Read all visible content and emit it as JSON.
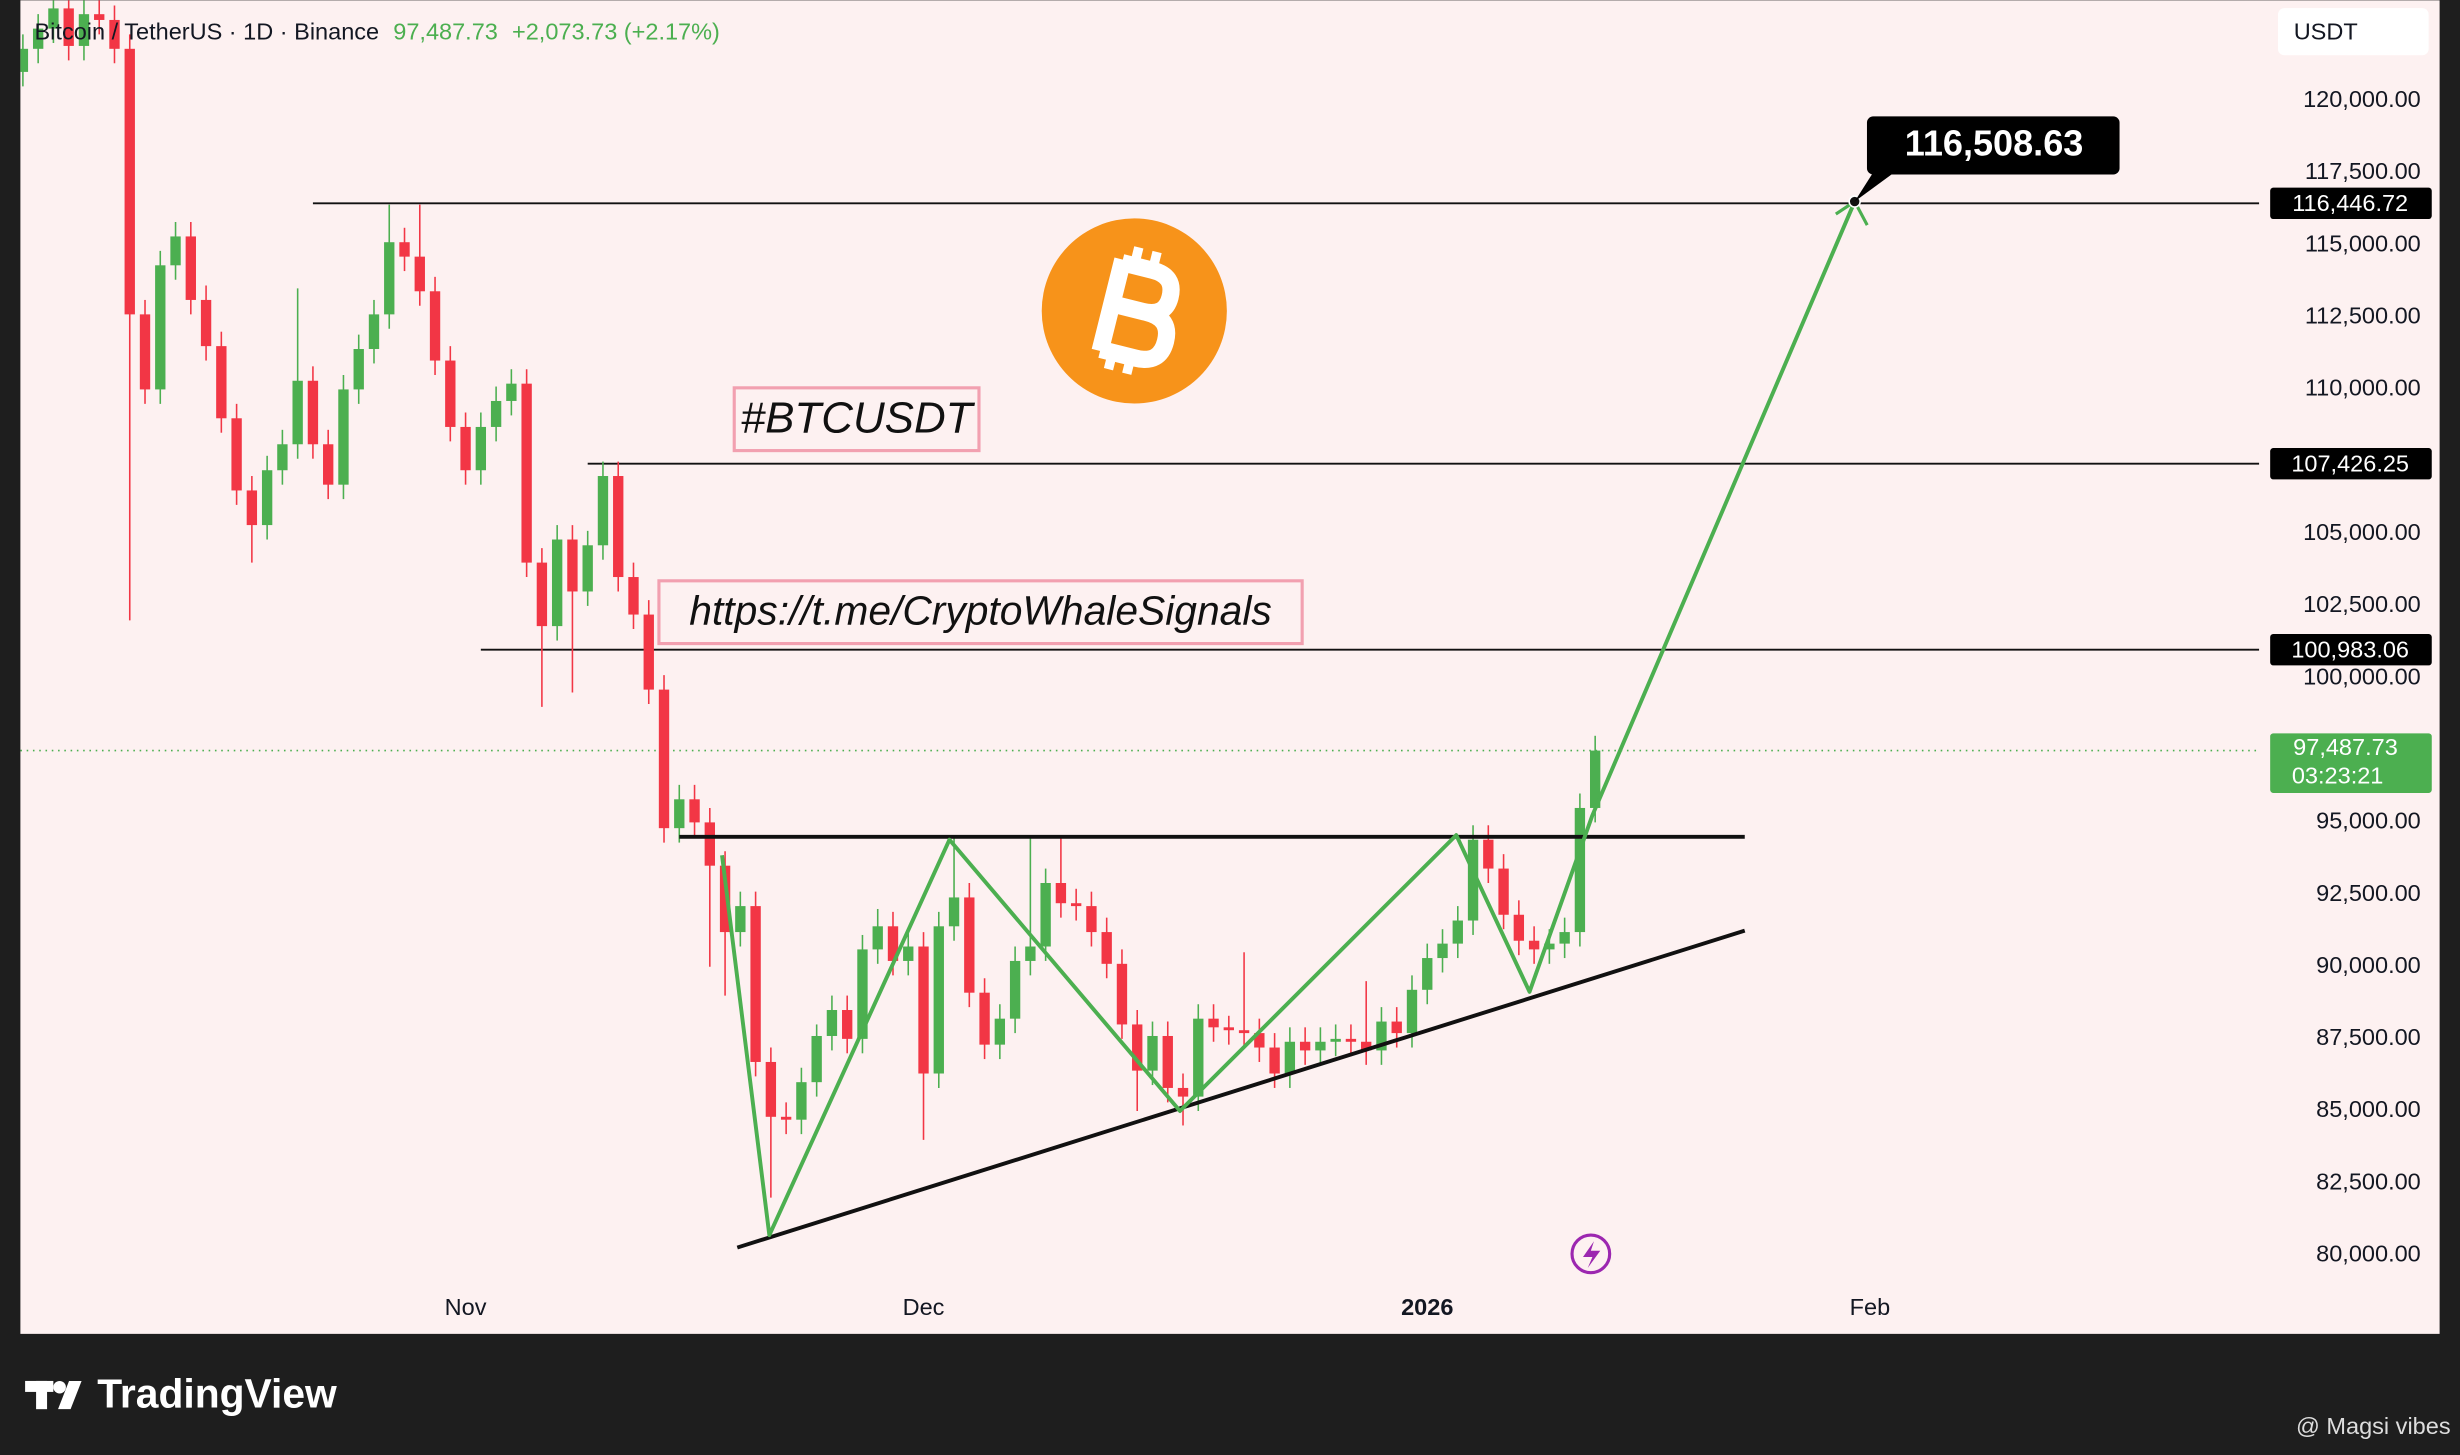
{
  "chart_data": {
    "type": "candlestick",
    "title": "Bitcoin / TetherUS · 1D · Binance",
    "price": {
      "value": 97487.73,
      "label": "97,487.73"
    },
    "change": "+2,073.73 (+2.17%)",
    "currency": "USDT",
    "countdown": "03:23:21",
    "up_color": "#4caf50",
    "down_color": "#f23645",
    "open": [
      121000,
      121800,
      122500,
      123200,
      121900,
      123000,
      122800,
      121800,
      112600,
      110000,
      114300,
      115300,
      113100,
      111500,
      109000,
      106500,
      105300,
      107200,
      108100,
      110300,
      108100,
      106700,
      110000,
      111400,
      112600,
      115100,
      114600,
      113400,
      111000,
      108700,
      107200,
      108700,
      109600,
      110200,
      104000,
      101800,
      104800,
      103000,
      104600,
      107000,
      103500,
      102200,
      99600,
      94800,
      95800,
      95000,
      93500,
      91200,
      92100,
      86700,
      84800,
      84700,
      86000,
      87600,
      88500,
      87500,
      90600,
      91400,
      90200,
      90700,
      86300,
      91400,
      92400,
      89100,
      87300,
      88200,
      90200,
      90700,
      92900,
      92200,
      92100,
      91200,
      90100,
      88000,
      86400,
      87600,
      85800,
      85500,
      88200,
      87900,
      87800,
      87700,
      87200,
      86300,
      87400,
      87100,
      87400,
      87500,
      87400,
      87100,
      88100,
      87700,
      89200,
      90300,
      90800,
      91600,
      94400,
      93400,
      91800,
      90900,
      90600,
      90800,
      91200,
      95500
    ],
    "high": [
      122300,
      123000,
      123700,
      123700,
      123500,
      123500,
      123300,
      122300,
      113100,
      114800,
      115800,
      115800,
      113600,
      112000,
      109500,
      107000,
      107700,
      108600,
      113500,
      110800,
      108600,
      110500,
      111900,
      113100,
      116400,
      115600,
      116400,
      113900,
      111500,
      109200,
      109200,
      110100,
      110700,
      110700,
      104500,
      105300,
      105300,
      105100,
      107500,
      107500,
      104000,
      102700,
      100100,
      96300,
      96300,
      95500,
      94000,
      92600,
      92600,
      87200,
      85300,
      86500,
      88000,
      89000,
      89000,
      91100,
      92000,
      91900,
      91200,
      91200,
      91900,
      94500,
      92900,
      89600,
      88700,
      90700,
      94500,
      93400,
      94500,
      92700,
      92600,
      91700,
      90600,
      88500,
      88100,
      88100,
      86300,
      88700,
      88700,
      88300,
      90500,
      88200,
      87700,
      87900,
      87900,
      87900,
      88000,
      88000,
      89500,
      88600,
      88600,
      89700,
      90800,
      91300,
      92100,
      94900,
      94900,
      93900,
      92300,
      91400,
      91300,
      91700,
      96000,
      98000
    ],
    "low": [
      120500,
      121300,
      122000,
      121400,
      121400,
      122300,
      121300,
      102000,
      109500,
      109500,
      113800,
      112600,
      111000,
      108500,
      106000,
      104000,
      104800,
      106700,
      107600,
      107600,
      106200,
      106200,
      109500,
      110900,
      112100,
      114100,
      112900,
      110500,
      108200,
      106700,
      106700,
      108200,
      109100,
      103500,
      99000,
      101300,
      99500,
      102500,
      104100,
      103000,
      101700,
      99100,
      94300,
      94300,
      94500,
      90000,
      89000,
      90700,
      86200,
      82000,
      84200,
      84200,
      85500,
      87100,
      87000,
      87000,
      90100,
      89700,
      89700,
      84000,
      85800,
      90900,
      88600,
      86800,
      86800,
      87700,
      89700,
      90200,
      91700,
      91600,
      90700,
      89600,
      87500,
      85000,
      85900,
      85300,
      84500,
      85000,
      87400,
      87300,
      87200,
      86700,
      85800,
      85800,
      86600,
      86600,
      86900,
      86900,
      86600,
      86600,
      87200,
      87200,
      88700,
      89800,
      90300,
      91100,
      92900,
      91300,
      90400,
      90100,
      90100,
      90300,
      90700,
      95000
    ],
    "close": [
      121800,
      122500,
      123200,
      121900,
      123000,
      122800,
      121800,
      112600,
      110000,
      114300,
      115300,
      113100,
      111500,
      109000,
      106500,
      105300,
      107200,
      108100,
      110300,
      108100,
      106700,
      110000,
      111400,
      112600,
      115100,
      114600,
      113400,
      111000,
      108700,
      107200,
      108700,
      109600,
      110200,
      104000,
      101800,
      104800,
      103000,
      104600,
      107000,
      103500,
      102200,
      99600,
      94800,
      95800,
      95000,
      93500,
      91200,
      92100,
      86700,
      84800,
      84700,
      86000,
      87600,
      88500,
      87500,
      90600,
      91400,
      90200,
      90700,
      86300,
      91400,
      92400,
      89100,
      87300,
      88200,
      90200,
      90700,
      92900,
      92200,
      92100,
      91200,
      90100,
      88000,
      86400,
      87600,
      85800,
      85500,
      88200,
      87900,
      87800,
      87700,
      87200,
      86300,
      87400,
      87100,
      87400,
      87500,
      87400,
      87100,
      88100,
      87700,
      89200,
      90300,
      90800,
      91600,
      94400,
      93400,
      91800,
      90900,
      90600,
      90800,
      91200,
      95500,
      97487.73
    ],
    "xlim": [
      -1.5,
      146.5
    ],
    "xticks": [
      {
        "value": 29,
        "label": "Nov"
      },
      {
        "value": 59,
        "label": "Dec"
      },
      {
        "value": 92,
        "label": "2026"
      },
      {
        "value": 121,
        "label": "Feb"
      }
    ],
    "ylim": [
      77280,
      123480
    ],
    "yticks": [
      {
        "value": 80000,
        "label": "80,000.00"
      },
      {
        "value": 82500,
        "label": "82,500.00"
      },
      {
        "value": 85000,
        "label": "85,000.00"
      },
      {
        "value": 87500,
        "label": "87,500.00"
      },
      {
        "value": 90000,
        "label": "90,000.00"
      },
      {
        "value": 92500,
        "label": "92,500.00"
      },
      {
        "value": 95000,
        "label": "95,000.00"
      },
      {
        "value": 97500,
        "label": "97,500.00"
      },
      {
        "value": 100000,
        "label": "100,000.00"
      },
      {
        "value": 102500,
        "label": "102,500.00"
      },
      {
        "value": 105000,
        "label": "105,000.00"
      },
      {
        "value": 107500,
        "label": "107,500.00"
      },
      {
        "value": 110000,
        "label": "110,000.00"
      },
      {
        "value": 112500,
        "label": "112,500.00"
      },
      {
        "value": 115000,
        "label": "115,000.00"
      },
      {
        "value": 117500,
        "label": "117,500.00"
      },
      {
        "value": 120000,
        "label": "120,000.00"
      }
    ],
    "levels": [
      {
        "value": 116446.72,
        "label": "116,446.72",
        "from": 19
      },
      {
        "value": 107426.25,
        "label": "107,426.25",
        "from": 37
      },
      {
        "value": 100983.06,
        "label": "100,983.06",
        "from": 30
      }
    ],
    "annotations": [
      "#BTCUSDT",
      "https://t.me/CryptoWhaleSignals"
    ],
    "resistance": {
      "x": [
        43,
        112.8
      ],
      "y": [
        94500,
        94500
      ]
    },
    "support": {
      "x": [
        46.8,
        112.8
      ],
      "y": [
        80270,
        91250
      ]
    },
    "pattern": {
      "color": "#4caf50",
      "x": [
        45.8,
        48.9,
        60.7,
        75.8,
        93.9,
        98.7,
        102.8,
        120
      ],
      "y": [
        93860,
        80700,
        94400,
        85000,
        94560,
        89130,
        95220,
        116508.63
      ]
    },
    "target": {
      "value": 116508.63,
      "label": "116,508.63"
    }
  },
  "footer": {
    "brand": "TradingView",
    "credit": "@ Magsi vibes"
  }
}
